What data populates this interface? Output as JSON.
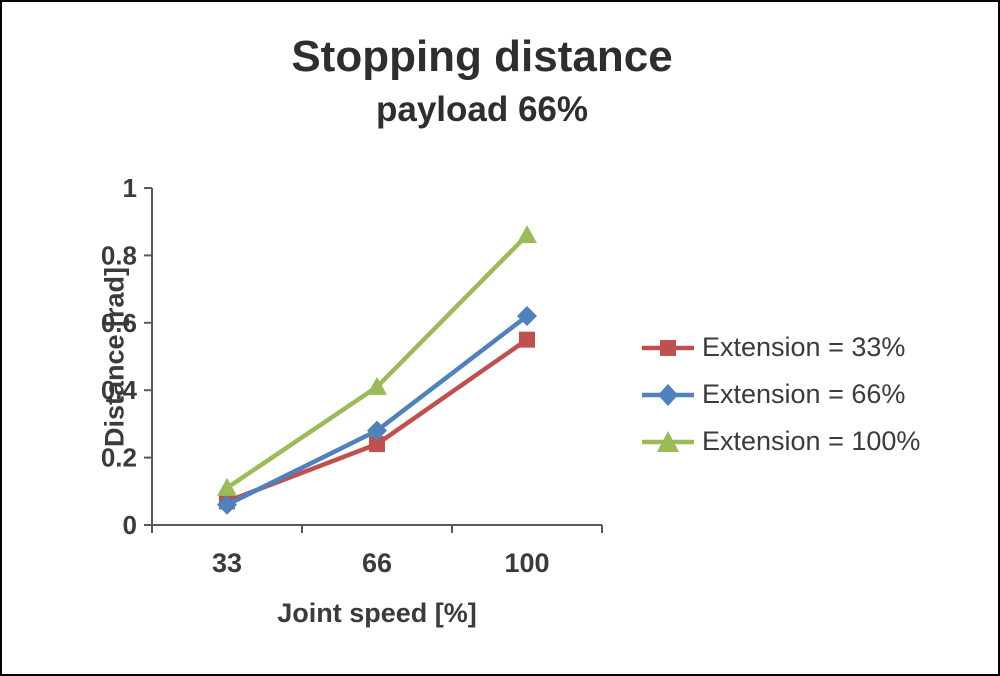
{
  "chart": {
    "title": "Stopping distance",
    "subtitle": "payload 66%",
    "xlabel": "Joint speed [%]",
    "ylabel": "Distance [rad]"
  },
  "chart_data": {
    "type": "line",
    "title": "Stopping distance",
    "subtitle": "payload 66%",
    "xlabel": "Joint speed [%]",
    "ylabel": "Distance [rad]",
    "categories": [
      "33",
      "66",
      "100"
    ],
    "series": [
      {
        "name": "Extension = 33%",
        "marker": "square",
        "color": "#c0504d",
        "values": [
          0.07,
          0.24,
          0.55
        ]
      },
      {
        "name": "Extension = 66%",
        "marker": "diamond",
        "color": "#4f81bd",
        "values": [
          0.06,
          0.28,
          0.62
        ]
      },
      {
        "name": "Extension = 100%",
        "marker": "triangle",
        "color": "#9bbb59",
        "values": [
          0.11,
          0.41,
          0.86
        ]
      }
    ],
    "ylim": [
      0,
      1
    ],
    "yticks": [
      0,
      0.2,
      0.4,
      0.6,
      0.8,
      1
    ],
    "ytick_labels": [
      "0",
      "0.2",
      "0.4",
      "0.6",
      "0.8",
      "1"
    ],
    "grid": false,
    "legend_position": "right"
  }
}
